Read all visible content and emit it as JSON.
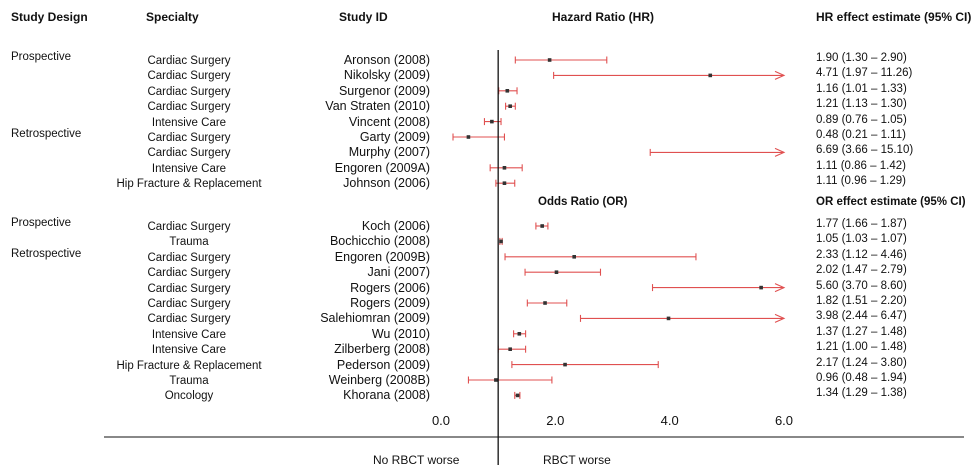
{
  "headers": {
    "study_design": "Study Design",
    "specialty": "Specialty",
    "study_id": "Study ID",
    "hr_title": "Hazard Ratio (HR)",
    "hr_estimate": "HR effect estimate (95% CI)",
    "or_title": "Odds Ratio (OR)",
    "or_estimate": "OR effect estimate (95% CI)"
  },
  "footer": {
    "left": "No RBCT worse",
    "right": "RBCT worse"
  },
  "colors": {
    "ci_line": "#e05050",
    "point": "#333333",
    "axis": "#111111"
  },
  "chart_data": {
    "type": "forest",
    "x_ticks": [
      "0.0",
      "2.0",
      "4.0",
      "6.0"
    ],
    "xlim": [
      0,
      6
    ],
    "reference_line": 1,
    "sections": [
      {
        "measure": "HR",
        "rows": [
          {
            "design": "Prospective",
            "specialty": "Cardiac Surgery",
            "study": "Aronson (2008)",
            "estimate": 1.9,
            "lo": 1.3,
            "hi": 2.9,
            "label": "1.90 (1.30 – 2.90)"
          },
          {
            "design": "",
            "specialty": "Cardiac Surgery",
            "study": "Nikolsky (2009)",
            "estimate": 4.71,
            "lo": 1.97,
            "hi": 11.26,
            "label": "4.71 (1.97 – 11.26)"
          },
          {
            "design": "",
            "specialty": "Cardiac Surgery",
            "study": "Surgenor (2009)",
            "estimate": 1.16,
            "lo": 1.01,
            "hi": 1.33,
            "label": "1.16 (1.01 – 1.33)"
          },
          {
            "design": "",
            "specialty": "Cardiac Surgery",
            "study": "Van Straten (2010)",
            "estimate": 1.21,
            "lo": 1.13,
            "hi": 1.3,
            "label": "1.21 (1.13 – 1.30)"
          },
          {
            "design": "",
            "specialty": "Intensive Care",
            "study": "Vincent (2008)",
            "estimate": 0.89,
            "lo": 0.76,
            "hi": 1.05,
            "label": "0.89 (0.76 – 1.05)"
          },
          {
            "design": "Retrospective",
            "specialty": "Cardiac Surgery",
            "study": "Garty (2009)",
            "estimate": 0.48,
            "lo": 0.21,
            "hi": 1.11,
            "label": "0.48 (0.21 – 1.11)"
          },
          {
            "design": "",
            "specialty": "Cardiac Surgery",
            "study": "Murphy (2007)",
            "estimate": 6.69,
            "lo": 3.66,
            "hi": 15.1,
            "label": "6.69 (3.66 – 15.10)"
          },
          {
            "design": "",
            "specialty": "Intensive Care",
            "study": "Engoren (2009A)",
            "estimate": 1.11,
            "lo": 0.86,
            "hi": 1.42,
            "label": "1.11 (0.86 – 1.42)"
          },
          {
            "design": "",
            "specialty": "Hip Fracture & Replacement",
            "study": "Johnson (2006)",
            "estimate": 1.11,
            "lo": 0.96,
            "hi": 1.29,
            "label": "1.11 (0.96 – 1.29)"
          }
        ]
      },
      {
        "measure": "OR",
        "rows": [
          {
            "design": "Prospective",
            "specialty": "Cardiac Surgery",
            "study": "Koch (2006)",
            "estimate": 1.77,
            "lo": 1.66,
            "hi": 1.87,
            "label": "1.77 (1.66 – 1.87)"
          },
          {
            "design": "",
            "specialty": "Trauma",
            "study": "Bochicchio (2008)",
            "estimate": 1.05,
            "lo": 1.03,
            "hi": 1.07,
            "label": "1.05 (1.03 – 1.07)"
          },
          {
            "design": "Retrospective",
            "specialty": "Cardiac Surgery",
            "study": "Engoren (2009B)",
            "estimate": 2.33,
            "lo": 1.12,
            "hi": 4.46,
            "label": "2.33 (1.12 – 4.46)"
          },
          {
            "design": "",
            "specialty": "Cardiac Surgery",
            "study": "Jani (2007)",
            "estimate": 2.02,
            "lo": 1.47,
            "hi": 2.79,
            "label": "2.02 (1.47 – 2.79)"
          },
          {
            "design": "",
            "specialty": "Cardiac Surgery",
            "study": "Rogers (2006)",
            "estimate": 5.6,
            "lo": 3.7,
            "hi": 8.6,
            "label": "5.60 (3.70 – 8.60)"
          },
          {
            "design": "",
            "specialty": "Cardiac Surgery",
            "study": "Rogers (2009)",
            "estimate": 1.82,
            "lo": 1.51,
            "hi": 2.2,
            "label": "1.82 (1.51 – 2.20)"
          },
          {
            "design": "",
            "specialty": "Cardiac Surgery",
            "study": "Salehiomran (2009)",
            "estimate": 3.98,
            "lo": 2.44,
            "hi": 6.47,
            "label": "3.98 (2.44 – 6.47)"
          },
          {
            "design": "",
            "specialty": "Intensive Care",
            "study": "Wu (2010)",
            "estimate": 1.37,
            "lo": 1.27,
            "hi": 1.48,
            "label": "1.37 (1.27 – 1.48)"
          },
          {
            "design": "",
            "specialty": "Intensive Care",
            "study": "Zilberberg (2008)",
            "estimate": 1.21,
            "lo": 1.0,
            "hi": 1.48,
            "label": "1.21 (1.00 – 1.48)"
          },
          {
            "design": "",
            "specialty": "Hip Fracture & Replacement",
            "study": "Pederson (2009)",
            "estimate": 2.17,
            "lo": 1.24,
            "hi": 3.8,
            "label": "2.17 (1.24 – 3.80)"
          },
          {
            "design": "",
            "specialty": "Trauma",
            "study": "Weinberg (2008B)",
            "estimate": 0.96,
            "lo": 0.48,
            "hi": 1.94,
            "label": "0.96 (0.48 – 1.94)"
          },
          {
            "design": "",
            "specialty": "Oncology",
            "study": "Khorana (2008)",
            "estimate": 1.34,
            "lo": 1.29,
            "hi": 1.38,
            "label": "1.34 (1.29 – 1.38)"
          }
        ]
      }
    ]
  }
}
